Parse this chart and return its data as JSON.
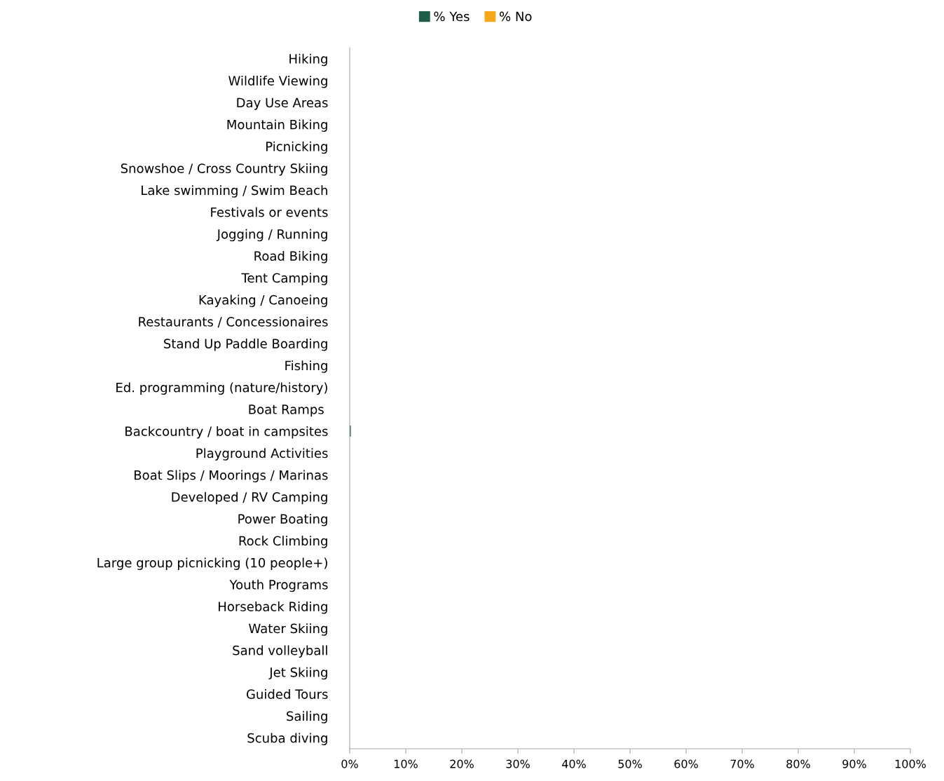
{
  "chart_data": {
    "type": "bar",
    "orientation": "horizontal",
    "categories": [
      "Hiking",
      "Wildlife Viewing",
      "Day Use Areas",
      "Mountain Biking",
      "Picnicking",
      "Snowshoe / Cross Country Skiing",
      "Lake swimming / Swim Beach",
      "Festivals or events",
      "Jogging / Running",
      "Road Biking",
      "Tent Camping",
      "Kayaking / Canoeing",
      "Restaurants / Concessionaires",
      "Stand Up Paddle Boarding",
      "Fishing",
      "Ed. programming (nature/history)",
      "Boat Ramps ",
      "Backcountry / boat in campsites",
      "Playground Activities",
      "Boat Slips / Moorings / Marinas",
      "Developed / RV Camping",
      "Power Boating",
      "Rock Climbing",
      "Large group picnicking (10 people+)",
      "Youth Programs",
      "Horseback Riding",
      "Water Skiing",
      "Sand volleyball",
      "Jet Skiing",
      "Guided Tours",
      "Sailing",
      "Scuba diving"
    ],
    "series": [
      {
        "name": "% Yes",
        "color": "#1f5c4a",
        "values": [
          0,
          0,
          0,
          0,
          0,
          0,
          0,
          0,
          0,
          0,
          0,
          0,
          0,
          0,
          0,
          0,
          0,
          0.2,
          0,
          0,
          0,
          0,
          0,
          0,
          0,
          0,
          0,
          0,
          0,
          0,
          0,
          0
        ]
      },
      {
        "name": "% No",
        "color": "#f5a81c",
        "values": [
          0,
          0,
          0,
          0,
          0,
          0,
          0,
          0,
          0,
          0,
          0,
          0,
          0,
          0,
          0,
          0,
          0,
          0,
          0,
          0,
          0,
          0,
          0,
          0,
          0,
          0,
          0,
          0,
          0,
          0,
          0,
          0
        ]
      }
    ],
    "xlim": [
      0,
      100
    ],
    "xticks": [
      {
        "value": 0,
        "label": "0%"
      },
      {
        "value": 10,
        "label": "10%"
      },
      {
        "value": 20,
        "label": "20%"
      },
      {
        "value": 30,
        "label": "30%"
      },
      {
        "value": 40,
        "label": "40%"
      },
      {
        "value": 50,
        "label": "50%"
      },
      {
        "value": 60,
        "label": "60%"
      },
      {
        "value": 70,
        "label": "70%"
      },
      {
        "value": 80,
        "label": "80%"
      },
      {
        "value": 90,
        "label": "90%"
      },
      {
        "value": 100,
        "label": "100%"
      }
    ],
    "legend": "top",
    "grid": false
  }
}
